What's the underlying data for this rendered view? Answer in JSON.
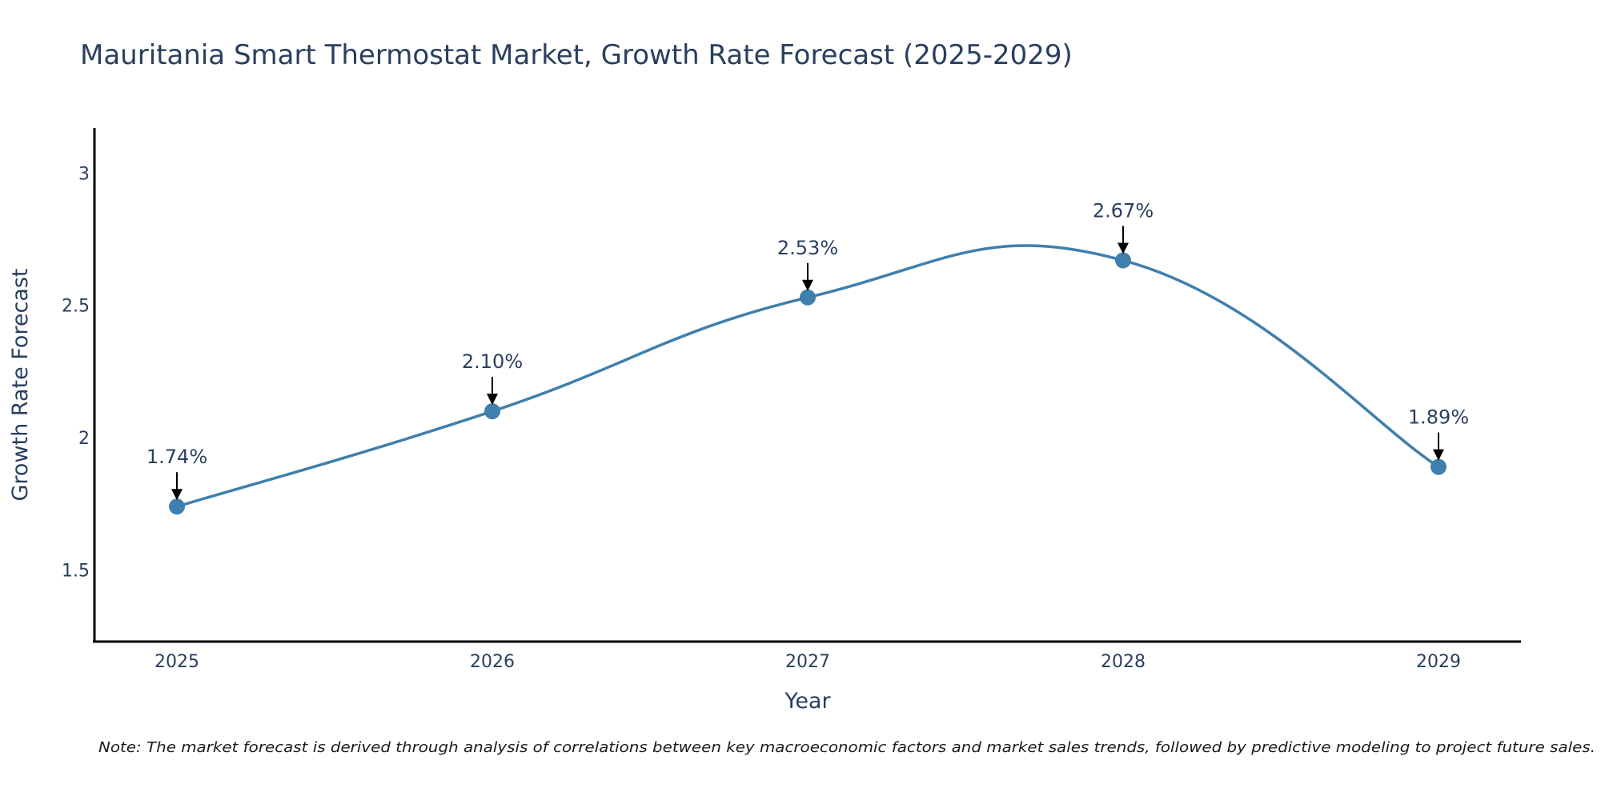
{
  "chart_data": {
    "type": "line",
    "title": "Mauritania Smart Thermostat Market, Growth Rate Forecast (2025-2029)",
    "xlabel": "Year",
    "ylabel": "Growth Rate Forecast",
    "categories": [
      "2025",
      "2026",
      "2027",
      "2028",
      "2029"
    ],
    "series": [
      {
        "name": "Growth Rate Forecast",
        "values": [
          1.74,
          2.1,
          2.53,
          2.67,
          1.89
        ],
        "color": "#3f7fad"
      }
    ],
    "annotations": [
      "1.74%",
      "2.10%",
      "2.53%",
      "2.67%",
      "1.89%"
    ],
    "ylim": [
      1.23,
      3.17
    ],
    "yticks": [
      1.5,
      2,
      2.5,
      3
    ],
    "ytick_labels": [
      "1.5",
      "2",
      "2.5",
      "3"
    ],
    "grid": false,
    "note": "Note: The market forecast is derived through analysis of correlations between key macroeconomic factors and market sales trends, followed by predictive modeling to project future sales."
  }
}
